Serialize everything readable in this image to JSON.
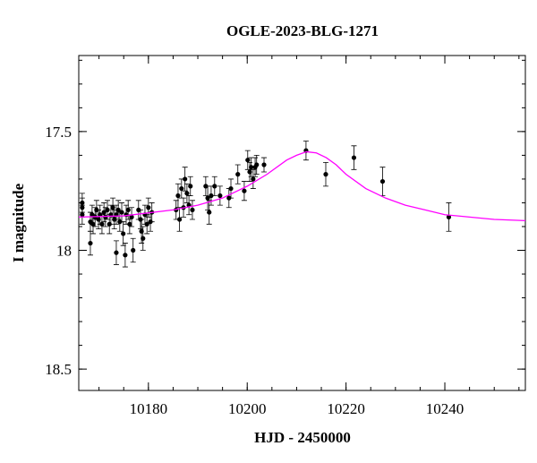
{
  "chart_data": {
    "type": "scatter",
    "title": "OGLE-2023-BLG-1271",
    "x_label": "HJD - 2450000",
    "y_label": "I magnitude",
    "xlim": [
      10165.9,
      10256.3
    ],
    "ylim": [
      17.18,
      18.59
    ],
    "y_inverted": true,
    "xticks": [
      10180,
      10200,
      10220,
      10240
    ],
    "yticks": [
      17.5,
      18,
      18.5
    ],
    "xminor": 5,
    "yminor": 0.1,
    "series": [
      {
        "color": "#000000",
        "x": [
          10166.6,
          10166.6,
          10166.6,
          10168.25,
          10168.25,
          10168.6,
          10168.8,
          10169.2,
          10169.5,
          10169.9,
          10170.2,
          10170.6,
          10171.0,
          10171.3,
          10171.7,
          10172.1,
          10172.4,
          10172.8,
          10173.1,
          10173.5,
          10173.5,
          10173.9,
          10174.2,
          10174.6,
          10174.9,
          10175.3,
          10175.5,
          10175.9,
          10176.2,
          10176.6,
          10176.9,
          10178.0,
          10178.4,
          10178.6,
          10178.9,
          10179.3,
          10179.7,
          10180.0,
          10180.4,
          10180.7,
          10185.6,
          10186.0,
          10186.3,
          10186.7,
          10187.1,
          10187.4,
          10187.8,
          10188.2,
          10188.5,
          10188.9,
          10191.6,
          10192.0,
          10192.3,
          10192.7,
          10193.4,
          10194.5,
          10196.3,
          10196.7,
          10198.1,
          10199.4,
          10200.1,
          10200.5,
          10200.8,
          10201.2,
          10201.6,
          10201.9,
          10203.4,
          10211.9,
          10215.9,
          10221.6,
          10227.4,
          10240.8
        ],
        "values": [
          17.85,
          17.82,
          17.8,
          17.97,
          17.88,
          17.85,
          17.89,
          17.86,
          17.83,
          17.87,
          17.85,
          17.89,
          17.84,
          17.86,
          17.83,
          17.89,
          17.85,
          17.82,
          17.87,
          18.01,
          17.85,
          17.83,
          17.88,
          17.84,
          17.93,
          18.02,
          17.85,
          17.83,
          17.89,
          17.86,
          18.0,
          17.83,
          17.87,
          17.92,
          17.95,
          17.85,
          17.89,
          17.82,
          17.88,
          17.84,
          17.83,
          17.77,
          17.87,
          17.74,
          17.82,
          17.7,
          17.76,
          17.81,
          17.73,
          17.83,
          17.73,
          17.78,
          17.84,
          17.77,
          17.73,
          17.77,
          17.78,
          17.74,
          17.68,
          17.75,
          17.62,
          17.67,
          17.65,
          17.7,
          17.65,
          17.64,
          17.64,
          17.58,
          17.68,
          17.61,
          17.71,
          17.86
        ],
        "errors": [
          0.04,
          0.04,
          0.04,
          0.05,
          0.04,
          0.04,
          0.04,
          0.04,
          0.04,
          0.04,
          0.04,
          0.04,
          0.04,
          0.04,
          0.04,
          0.04,
          0.04,
          0.04,
          0.04,
          0.05,
          0.04,
          0.04,
          0.04,
          0.04,
          0.05,
          0.05,
          0.04,
          0.04,
          0.04,
          0.04,
          0.05,
          0.04,
          0.04,
          0.05,
          0.05,
          0.04,
          0.04,
          0.04,
          0.04,
          0.04,
          0.04,
          0.05,
          0.05,
          0.04,
          0.04,
          0.05,
          0.04,
          0.04,
          0.04,
          0.04,
          0.04,
          0.05,
          0.05,
          0.04,
          0.04,
          0.04,
          0.04,
          0.04,
          0.04,
          0.04,
          0.04,
          0.04,
          0.04,
          0.04,
          0.04,
          0.04,
          0.03,
          0.04,
          0.05,
          0.05,
          0.06,
          0.06
        ]
      },
      {
        "color": "#ff00ff",
        "kind": "line",
        "x": [
          10165.9,
          10175,
          10185,
          10190,
          10195,
          10200,
          10204,
          10208,
          10210,
          10212,
          10214,
          10216,
          10218,
          10220,
          10224,
          10228,
          10232,
          10236,
          10240,
          10245,
          10250,
          10256.3
        ],
        "values": [
          17.86,
          17.855,
          17.83,
          17.81,
          17.78,
          17.73,
          17.68,
          17.62,
          17.6,
          17.585,
          17.59,
          17.61,
          17.64,
          17.68,
          17.74,
          17.78,
          17.81,
          17.83,
          17.85,
          17.86,
          17.87,
          17.875
        ]
      }
    ]
  }
}
